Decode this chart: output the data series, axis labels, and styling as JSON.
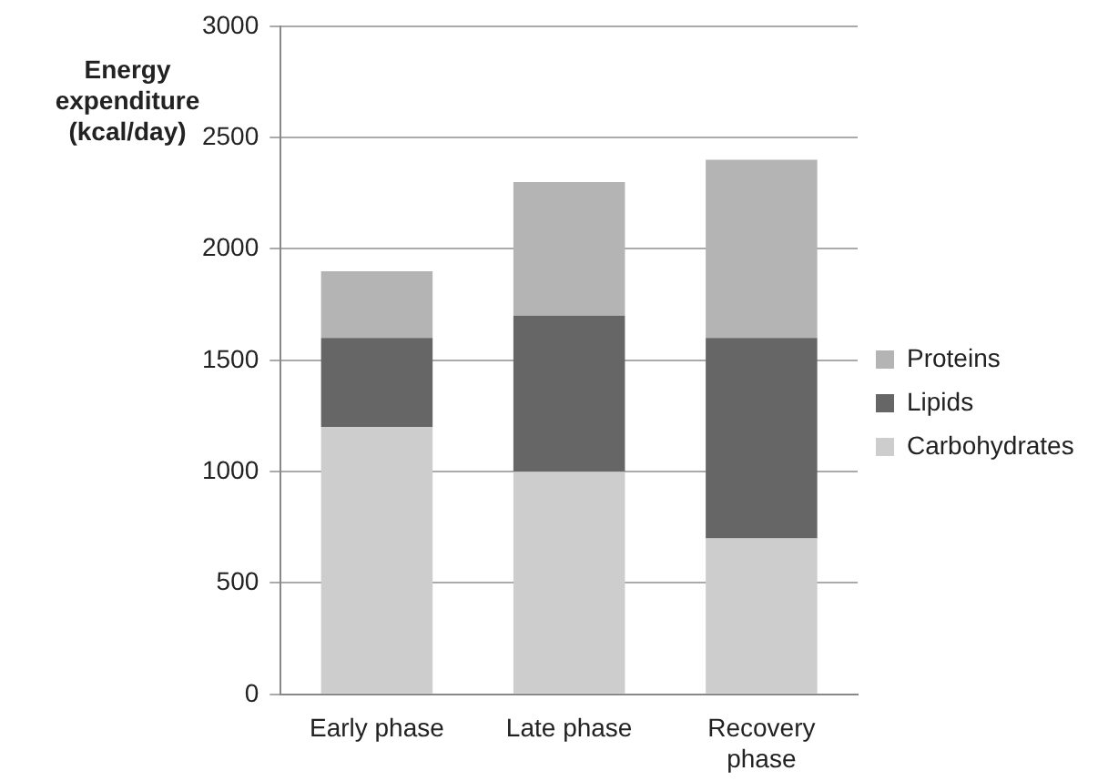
{
  "chart_data": {
    "type": "bar",
    "stacked": true,
    "ylabel": "Energy expenditure (kcal/day)",
    "categories": [
      "Early phase",
      "Late phase",
      "Recovery phase"
    ],
    "series": [
      {
        "name": "Carbohydrates",
        "color": "#cdcdcd",
        "values": [
          1200,
          1000,
          700
        ]
      },
      {
        "name": "Lipids",
        "color": "#666666",
        "values": [
          400,
          700,
          900
        ]
      },
      {
        "name": "Proteins",
        "color": "#b4b4b4",
        "values": [
          300,
          600,
          800
        ]
      }
    ],
    "ylim": [
      0,
      3000
    ],
    "yticks": [
      0,
      500,
      1000,
      1500,
      2000,
      2500,
      3000
    ],
    "grid": "y",
    "legend": "right"
  }
}
